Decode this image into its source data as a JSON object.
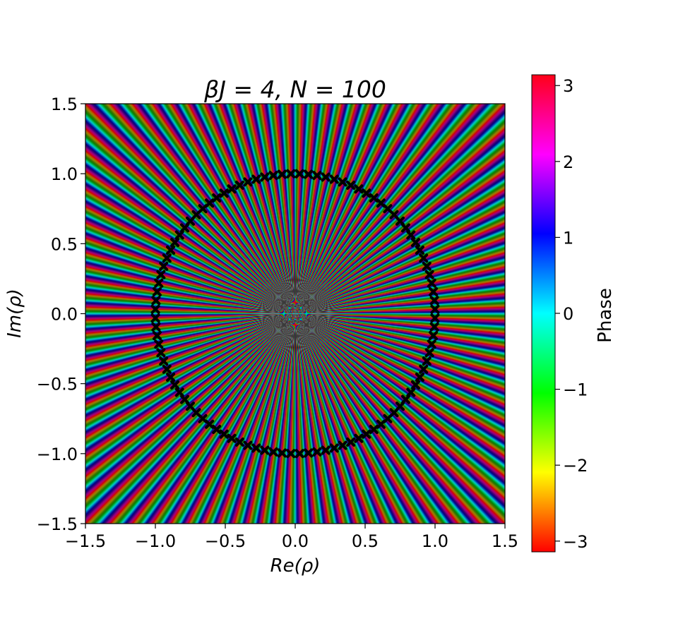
{
  "chart_data": {
    "type": "heatmap",
    "title": "βJ = 4, N = 100",
    "xlabel": "Re(ρ)",
    "ylabel": "Im(ρ)",
    "xlim": [
      -1.5,
      1.5
    ],
    "ylim": [
      -1.5,
      1.5
    ],
    "x_ticks": [
      "−1.5",
      "−1.0",
      "−0.5",
      "0.0",
      "0.5",
      "1.0",
      "1.5"
    ],
    "y_ticks": [
      "−1.5",
      "−1.0",
      "−0.5",
      "0.0",
      "0.5",
      "1.0",
      "1.5"
    ],
    "color_quantity": "phase of ρ^N",
    "phase_range": [
      -3.14159,
      3.14159
    ],
    "colormap": "hsv",
    "N": 100,
    "zeros": {
      "count": 100,
      "radius": 1.0,
      "center": [
        0.0,
        0.0
      ],
      "marker": "black X"
    },
    "colorbar": {
      "label": "Phase",
      "ticks": [
        "3",
        "2",
        "1",
        "0",
        "−1",
        "−2",
        "−3"
      ],
      "tick_values": [
        3,
        2,
        1,
        0,
        -1,
        -2,
        -3
      ],
      "vmin": -3.14159,
      "vmax": 3.14159
    },
    "grid": false
  }
}
